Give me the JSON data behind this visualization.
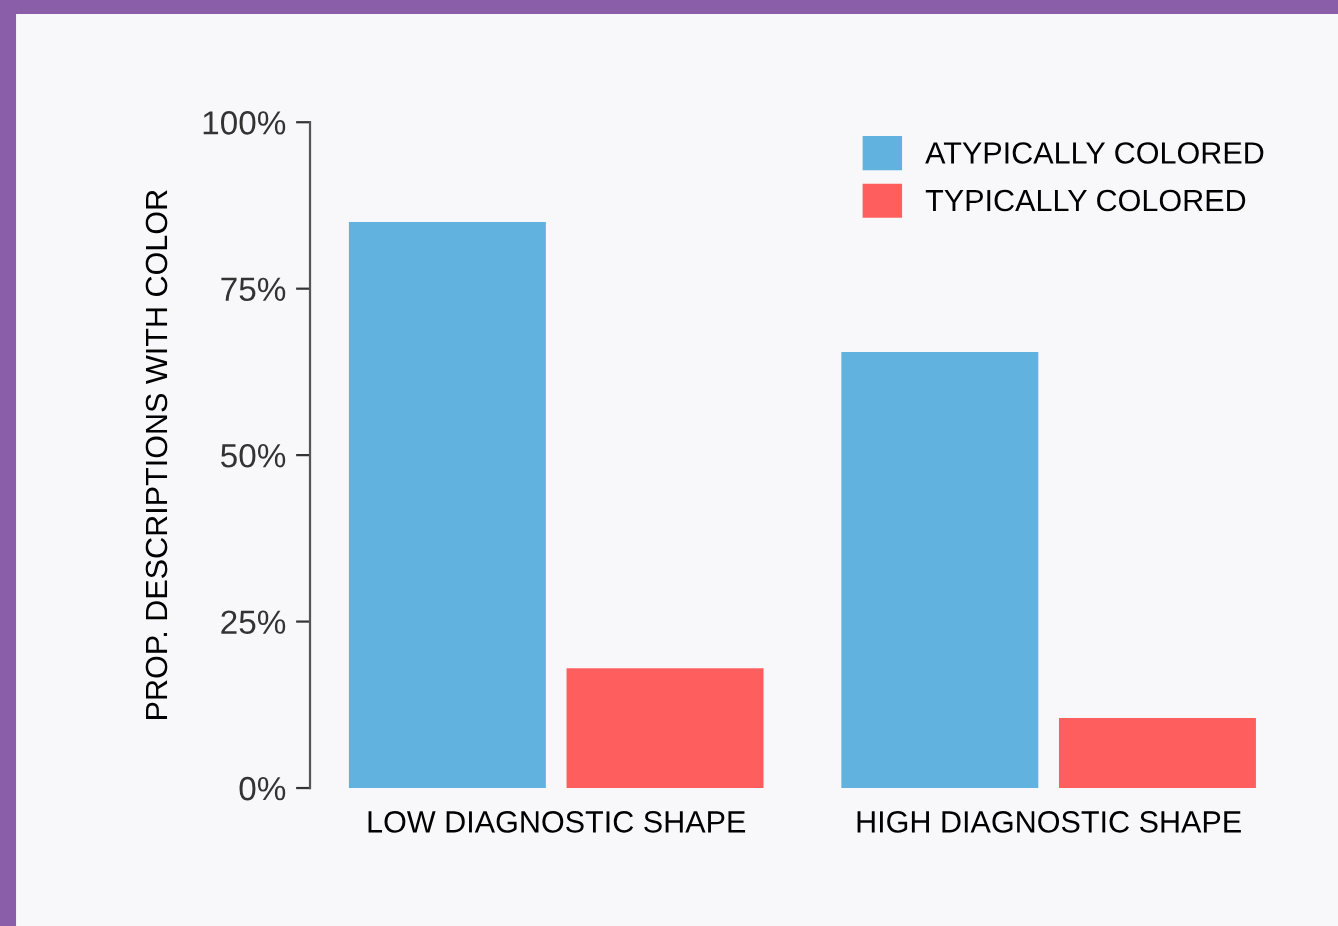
{
  "chart_data": {
    "type": "bar",
    "ylabel": "PROP. DESCRIPTIONS WITH COLOR",
    "categories": [
      "LOW DIAGNOSTIC SHAPE",
      "HIGH DIAGNOSTIC SHAPE"
    ],
    "series": [
      {
        "name": "ATYPICALLY COLORED",
        "color": "#62b2e0",
        "values": [
          85,
          65.5
        ]
      },
      {
        "name": "TYPICALLY COLORED",
        "color": "#fe5f5e",
        "values": [
          18,
          10.5
        ]
      }
    ],
    "ylim": [
      0,
      100
    ],
    "yticks": [
      {
        "value": 0,
        "label": "0%"
      },
      {
        "value": 25,
        "label": "25%"
      },
      {
        "value": 50,
        "label": "50%"
      },
      {
        "value": 75,
        "label": "75%"
      },
      {
        "value": 100,
        "label": "100%"
      }
    ],
    "grid": false,
    "legend": "top right"
  }
}
